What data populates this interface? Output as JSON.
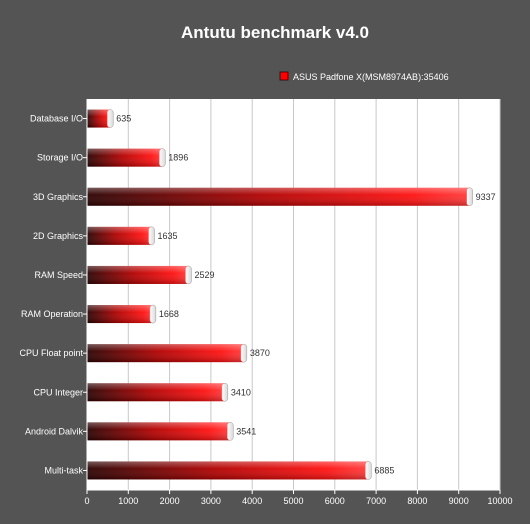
{
  "chart_data": {
    "type": "bar",
    "orientation": "horizontal",
    "title": "Antutu benchmark v4.0",
    "categories": [
      "Database I/O",
      "Storage I/O",
      "3D Graphics",
      "2D Graphics",
      "RAM Speed",
      "RAM Operation",
      "CPU Float point",
      "CPU Integer",
      "Android Dalvik",
      "Multi-task"
    ],
    "series": [
      {
        "name": "ASUS Padfone X(MSM8974AB):35406",
        "values": [
          635,
          1896,
          9337,
          1635,
          2529,
          1668,
          3870,
          3410,
          3541,
          6885
        ],
        "color": "#ff0000"
      }
    ],
    "xlim": [
      0,
      10000
    ],
    "xticks": [
      0,
      1000,
      2000,
      3000,
      4000,
      5000,
      6000,
      7000,
      8000,
      9000,
      10000
    ],
    "grid": true,
    "legend_position": "top-right",
    "colors": {
      "background": "#545454",
      "plot_background": "#ffffff",
      "grid": "#c8c8c8",
      "bar_dark": "#3a0000",
      "bar_bright": "#ff0000",
      "title": "#ffffff"
    }
  }
}
